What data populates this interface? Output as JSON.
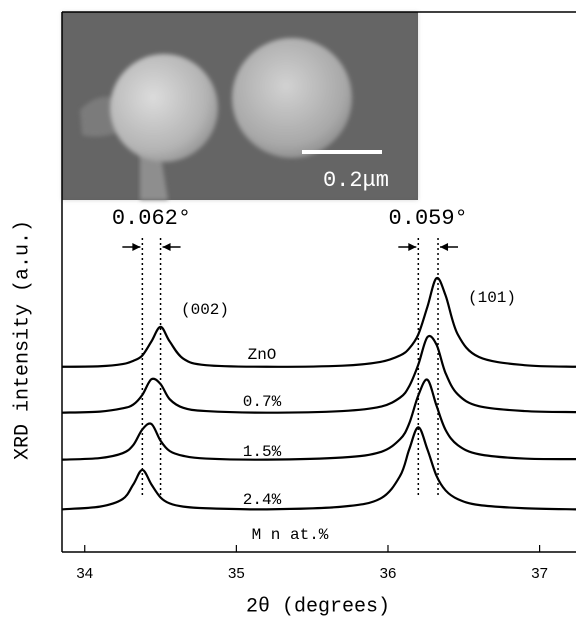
{
  "chart_data": {
    "type": "line",
    "x_label": "2θ (degrees)",
    "y_label": "XRD intensity (a.u.)",
    "xlim": [
      33.85,
      37.24
    ],
    "xticks": [
      34,
      35,
      36,
      37
    ],
    "ylim": [
      0,
      100
    ],
    "x": [
      33.85,
      34.1,
      34.25,
      34.32,
      34.38,
      34.44,
      34.5,
      34.56,
      34.65,
      34.8,
      35.2,
      35.7,
      35.95,
      36.08,
      36.14,
      36.2,
      36.26,
      36.32,
      36.38,
      36.46,
      36.6,
      36.9,
      37.24
    ],
    "series": [
      {
        "name": "ZnO",
        "color": "#000000",
        "values": [
          34.3,
          34.4,
          34.8,
          35.4,
          36.4,
          39.0,
          41.7,
          39.0,
          35.8,
          34.6,
          34.3,
          34.5,
          35.2,
          36.4,
          37.7,
          40.3,
          45.4,
          50.7,
          47.5,
          40.3,
          36.1,
          34.6,
          34.3
        ]
      },
      {
        "name": "0.7%",
        "color": "#000000",
        "values": [
          25.8,
          26.0,
          26.6,
          27.3,
          29.1,
          32.0,
          31.1,
          28.3,
          26.7,
          26.1,
          25.8,
          26.1,
          26.9,
          28.6,
          30.7,
          34.7,
          39.8,
          38.4,
          33.1,
          29.2,
          27.0,
          26.1,
          25.9
        ]
      },
      {
        "name": "1.5%",
        "color": "#000000",
        "values": [
          17.1,
          17.4,
          18.3,
          19.8,
          22.7,
          23.7,
          20.6,
          18.7,
          17.8,
          17.3,
          17.1,
          17.5,
          18.5,
          20.9,
          23.8,
          29.0,
          31.9,
          27.1,
          22.6,
          19.8,
          18.1,
          17.3,
          17.2
        ]
      },
      {
        "name": "2.4%",
        "color": "#000000",
        "values": [
          7.9,
          8.4,
          9.8,
          12.5,
          15.2,
          12.5,
          10.1,
          9.0,
          8.4,
          8.1,
          7.9,
          8.4,
          9.9,
          14.1,
          19.0,
          23.1,
          19.0,
          14.1,
          11.4,
          9.8,
          8.7,
          8.1,
          7.9
        ]
      }
    ],
    "legend_title": "M n at.%",
    "peak_labels": [
      "(002)",
      "(101)"
    ],
    "shift_markers": [
      {
        "label": "0.062°",
        "x": [
          34.38,
          34.5
        ]
      },
      {
        "label": "0.059°",
        "x": [
          36.2,
          36.33
        ]
      }
    ],
    "inset": {
      "scale_label": "0.2μm"
    }
  }
}
